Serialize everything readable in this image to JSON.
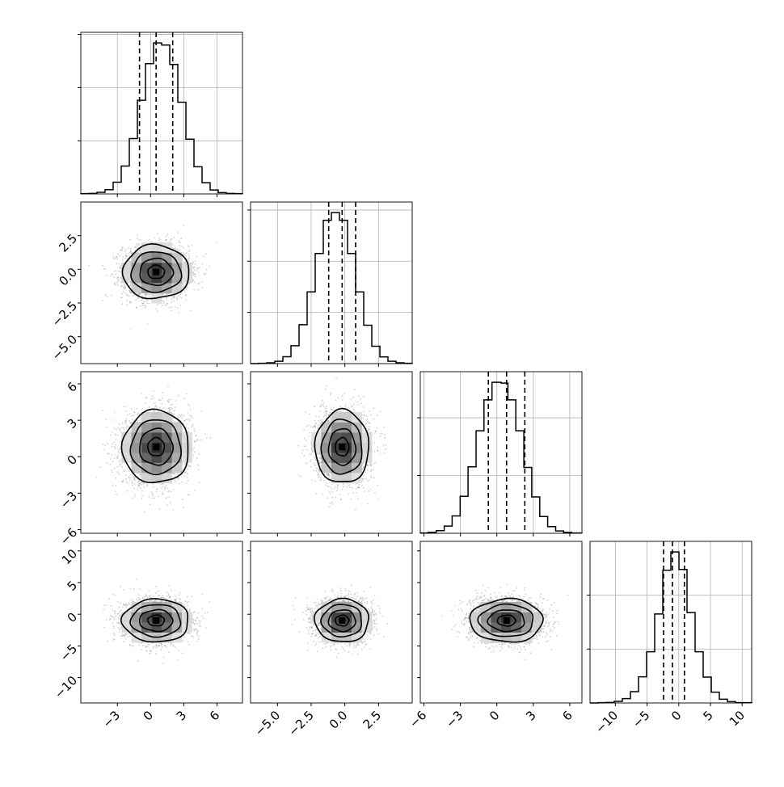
{
  "chart_data": {
    "type": "corner",
    "title": "",
    "n_params": 4,
    "colors": {
      "line": "#000000",
      "grid": "#b0b0b0",
      "point": "#9a9a9a"
    },
    "params": [
      {
        "range": [
          -6.3,
          8.3
        ],
        "ticks": [
          -3,
          0,
          3,
          6
        ],
        "tick_labels": [
          "−3",
          "0",
          "3",
          "6"
        ],
        "center": 0.5,
        "sigma": 1.5,
        "quantiles": [
          -1.0,
          0.5,
          2.0
        ]
      },
      {
        "range": [
          -7.0,
          5.0
        ],
        "ticks": [
          -5.0,
          -2.5,
          0.0,
          2.5
        ],
        "tick_labels": [
          "−5.0",
          "−2.5",
          "0.0",
          "2.5"
        ],
        "center": -0.2,
        "sigma": 1.0,
        "quantiles": [
          -1.2,
          -0.2,
          0.8
        ]
      },
      {
        "range": [
          -6.3,
          7.0
        ],
        "ticks": [
          -6,
          -3,
          0,
          3,
          6
        ],
        "tick_labels": [
          "−6",
          "−3",
          "0",
          "3",
          "6"
        ],
        "center": 0.8,
        "sigma": 1.5,
        "quantiles": [
          -0.7,
          0.8,
          2.3
        ]
      },
      {
        "range": [
          -14.0,
          11.5
        ],
        "ticks": [
          -10,
          -5,
          0,
          5,
          10
        ],
        "tick_labels": [
          "−10",
          "−5",
          "0",
          "5",
          "10"
        ],
        "center": -1.0,
        "sigma": 1.7,
        "quantiles": [
          -2.4,
          -1.0,
          0.9
        ]
      }
    ],
    "histograms": [
      {
        "param": 0,
        "edges": [
          -6.3,
          -5.57,
          -4.84,
          -4.11,
          -3.38,
          -2.65,
          -1.92,
          -1.19,
          -0.46,
          0.27,
          1.0,
          1.73,
          2.46,
          3.19,
          3.92,
          4.65,
          5.38,
          6.11,
          6.84,
          7.57,
          8.3
        ],
        "counts": [
          1,
          2,
          6,
          16,
          44,
          105,
          208,
          352,
          490,
          568,
          560,
          487,
          345,
          206,
          102,
          42,
          15,
          5,
          2,
          1
        ]
      },
      {
        "param": 1,
        "edges": [
          -7.0,
          -6.4,
          -5.8,
          -5.2,
          -4.6,
          -4.0,
          -3.4,
          -2.8,
          -2.2,
          -1.6,
          -1.0,
          -0.4,
          0.2,
          0.8,
          1.4,
          2.0,
          2.6,
          3.2,
          3.8,
          4.4,
          5.0
        ],
        "counts": [
          0,
          1,
          3,
          9,
          27,
          70,
          152,
          280,
          430,
          560,
          590,
          560,
          430,
          280,
          150,
          68,
          26,
          9,
          3,
          1
        ]
      },
      {
        "param": 2,
        "edges": [
          -6.3,
          -5.64,
          -4.99,
          -4.33,
          -3.68,
          -3.02,
          -2.37,
          -1.71,
          -1.06,
          -0.4,
          0.35,
          0.91,
          1.56,
          2.22,
          2.87,
          3.53,
          4.18,
          4.84,
          5.49,
          6.15,
          7.0
        ],
        "counts": [
          1,
          3,
          9,
          25,
          60,
          128,
          230,
          355,
          462,
          523,
          520,
          462,
          355,
          228,
          126,
          58,
          23,
          8,
          3,
          1
        ]
      },
      {
        "param": 3,
        "edges": [
          -14.0,
          -12.72,
          -11.45,
          -10.18,
          -8.9,
          -7.62,
          -6.35,
          -5.07,
          -3.8,
          -2.52,
          -1.25,
          0.03,
          1.3,
          2.58,
          3.85,
          5.13,
          6.4,
          7.68,
          8.95,
          10.22,
          11.5
        ],
        "counts": [
          0,
          1,
          2,
          6,
          16,
          42,
          97,
          190,
          330,
          492,
          560,
          495,
          335,
          190,
          96,
          40,
          14,
          5,
          1,
          1
        ]
      }
    ],
    "scatter_pairs": [
      {
        "x_param": 0,
        "y_param": 1,
        "points": 2600,
        "corr": 0.0
      },
      {
        "x_param": 0,
        "y_param": 2,
        "points": 2600,
        "corr": 0.05
      },
      {
        "x_param": 1,
        "y_param": 2,
        "points": 2600,
        "corr": 0.0
      },
      {
        "x_param": 0,
        "y_param": 3,
        "points": 2600,
        "corr": 0.0
      },
      {
        "x_param": 1,
        "y_param": 3,
        "points": 2600,
        "corr": 0.0
      },
      {
        "x_param": 2,
        "y_param": 3,
        "points": 2600,
        "corr": 0.0
      }
    ],
    "contour_levels_sigma": [
      0.5,
      1.0,
      1.5,
      2.0
    ],
    "grid": true,
    "quantile_lines": "dashed"
  }
}
